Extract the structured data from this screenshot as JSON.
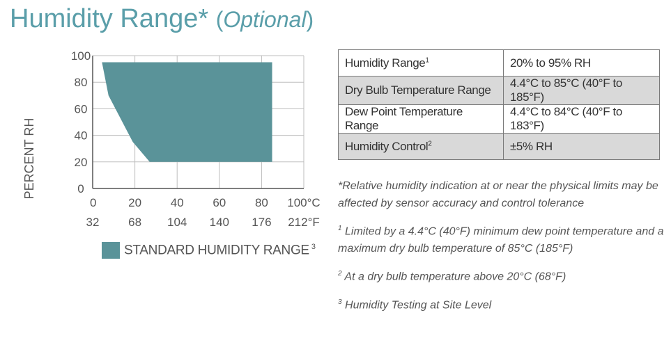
{
  "header": {
    "title": "Humidity Range*",
    "optional_label": "Optional"
  },
  "chart_data": {
    "type": "area",
    "ylabel": "PERCENT RH",
    "xlim": [
      0,
      100
    ],
    "ylim": [
      0,
      100
    ],
    "x_ticks": [
      "0",
      "20",
      "40",
      "60",
      "80",
      "100°C"
    ],
    "x_ticks_f": [
      "32",
      "68",
      "104",
      "140",
      "176",
      "212°F"
    ],
    "y_ticks": [
      "0",
      "20",
      "40",
      "60",
      "80",
      "100"
    ],
    "grid": true,
    "series": [
      {
        "name": "STANDARD HUMIDITY RANGE",
        "superscript": "3",
        "color": "#5a9399",
        "points": [
          {
            "x": 4.4,
            "y": 95
          },
          {
            "x": 85,
            "y": 95
          },
          {
            "x": 85,
            "y": 20
          },
          {
            "x": 27,
            "y": 20
          },
          {
            "x": 19,
            "y": 35
          },
          {
            "x": 7.5,
            "y": 70
          },
          {
            "x": 4.4,
            "y": 95
          }
        ]
      }
    ]
  },
  "table": {
    "rows": [
      {
        "label": "Humidity Range",
        "sup": "1",
        "value": "20% to 95% RH"
      },
      {
        "label": "Dry Bulb Temperature Range",
        "sup": "",
        "value": "4.4°C to 85°C (40°F to 185°F)"
      },
      {
        "label": "Dew Point Temperature Range",
        "sup": "",
        "value": "4.4°C to 84°C (40°F to 183°F)"
      },
      {
        "label": "Humidity Control",
        "sup": "2",
        "value": "±5% RH"
      }
    ]
  },
  "notes": [
    {
      "mark": "",
      "text": "*Relative humidity indication at or near the physical limits may be affected by sensor accuracy and control tolerance"
    },
    {
      "mark": "1",
      "text": "Limited by a 4.4°C (40°F) minimum dew point temperature and a maximum dry bulb temperature of 85°C (185°F)"
    },
    {
      "mark": "2",
      "text": "At a dry bulb temperature above 20°C (68°F)"
    },
    {
      "mark": "3",
      "text": "Humidity Testing at Site Level"
    }
  ]
}
